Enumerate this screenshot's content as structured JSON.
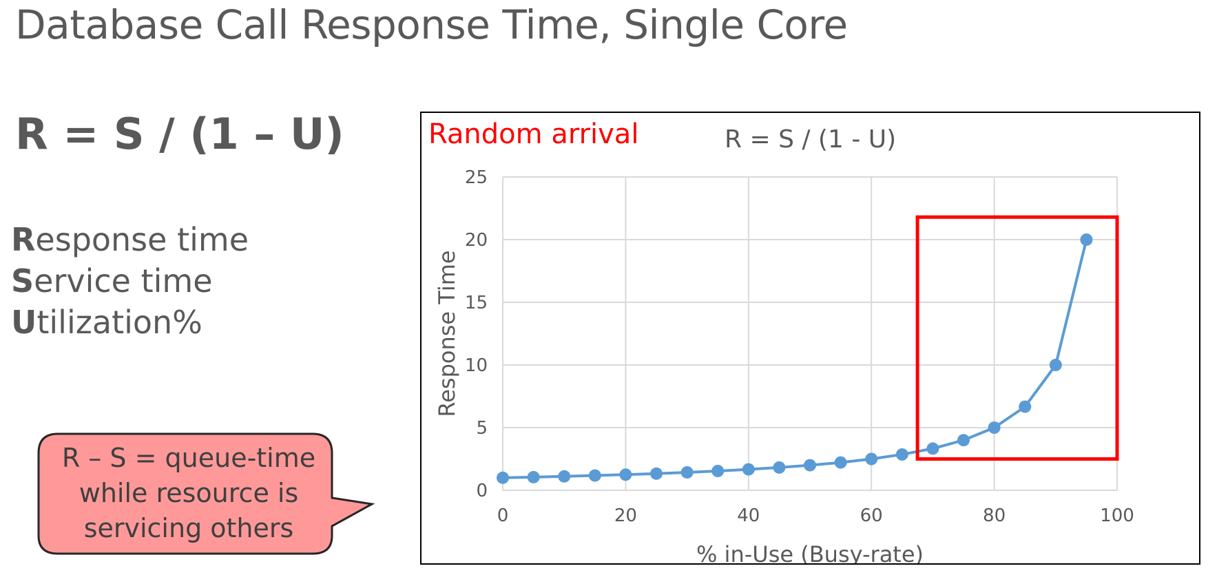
{
  "slide": {
    "title": "Database Call Response Time, Single Core",
    "formula": "R = S / (1 – U)",
    "definitions": [
      {
        "initial": "R",
        "rest": "esponse time"
      },
      {
        "initial": "S",
        "rest": "ervice time"
      },
      {
        "initial": "U",
        "rest": "tilization%"
      }
    ],
    "callout": {
      "lines": [
        "R – S = queue-time",
        "while resource is",
        "servicing others"
      ],
      "fill": "#ff9999"
    }
  },
  "chart_data": {
    "type": "line",
    "title": "R = S / (1 - U)",
    "annotation": "Random arrival",
    "xlabel": "% in-Use (Busy-rate)",
    "ylabel": "Response Time",
    "xlim": [
      0,
      100
    ],
    "ylim": [
      0,
      25
    ],
    "xticks": [
      "0",
      "20",
      "40",
      "60",
      "80",
      "100"
    ],
    "yticks": [
      "0",
      "5",
      "10",
      "15",
      "20",
      "25"
    ],
    "grid": true,
    "series": [
      {
        "color": "#5b9bd5",
        "x": [
          0,
          5,
          10,
          15,
          20,
          25,
          30,
          35,
          40,
          45,
          50,
          55,
          60,
          65,
          70,
          75,
          80,
          85,
          90,
          95
        ],
        "y": [
          1.0,
          1.05,
          1.11,
          1.18,
          1.25,
          1.33,
          1.43,
          1.54,
          1.67,
          1.82,
          2.0,
          2.22,
          2.5,
          2.86,
          3.33,
          4.0,
          5.0,
          6.67,
          10.0,
          20.0
        ]
      }
    ],
    "highlight": {
      "x_range": [
        67.5,
        100
      ],
      "y_range": [
        2.5,
        21.8
      ],
      "color": "#ff0000"
    }
  }
}
